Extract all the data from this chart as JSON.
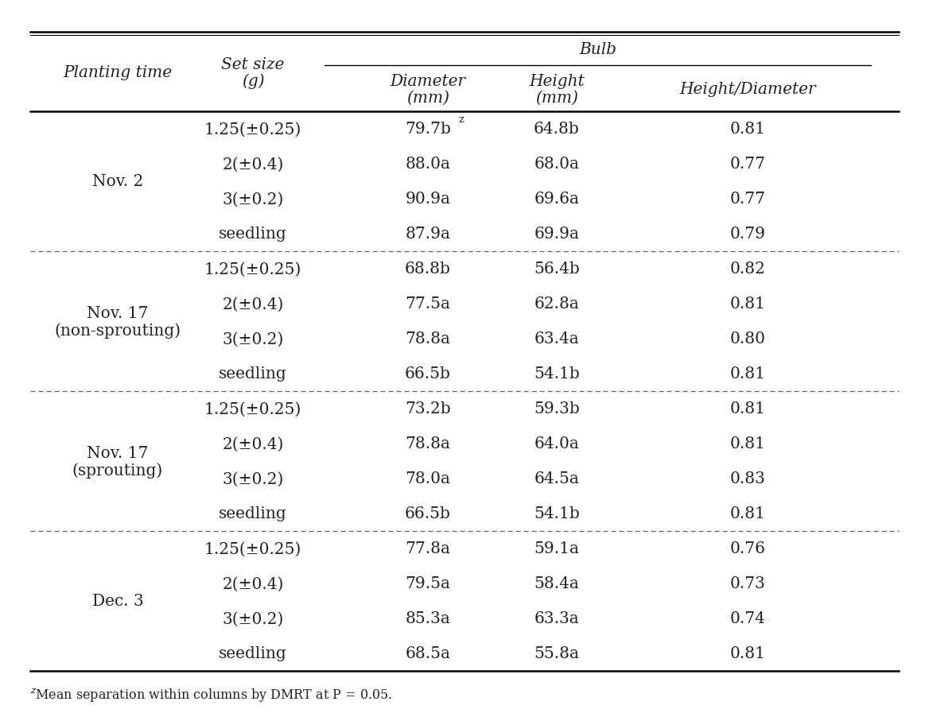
{
  "footnote": "zMean separation within columns by DMRT at P = 0.05.",
  "bulb_header": "Bulb",
  "col0_header": "Planting time",
  "col1_header_line1": "Set size",
  "col1_header_line2": "(g)",
  "col2_header_line1": "Diameter",
  "col2_header_line2": "(mm)",
  "col3_header_line1": "Height",
  "col3_header_line2": "(mm)",
  "col4_header": "Height/Diameter",
  "rows": [
    {
      "set_size": "1.25(±0.25)",
      "diameter": "79.7b",
      "diam_super": "z",
      "height": "64.8b",
      "hd": "0.81"
    },
    {
      "set_size": "2(±0.4)",
      "diameter": "88.0a",
      "diam_super": "",
      "height": "68.0a",
      "hd": "0.77"
    },
    {
      "set_size": "3(±0.2)",
      "diameter": "90.9a",
      "diam_super": "",
      "height": "69.6a",
      "hd": "0.77"
    },
    {
      "set_size": "seedling",
      "diameter": "87.9a",
      "diam_super": "",
      "height": "69.9a",
      "hd": "0.79"
    },
    {
      "set_size": "1.25(±0.25)",
      "diameter": "68.8b",
      "diam_super": "",
      "height": "56.4b",
      "hd": "0.82"
    },
    {
      "set_size": "2(±0.4)",
      "diameter": "77.5a",
      "diam_super": "",
      "height": "62.8a",
      "hd": "0.81"
    },
    {
      "set_size": "3(±0.2)",
      "diameter": "78.8a",
      "diam_super": "",
      "height": "63.4a",
      "hd": "0.80"
    },
    {
      "set_size": "seedling",
      "diameter": "66.5b",
      "diam_super": "",
      "height": "54.1b",
      "hd": "0.81"
    },
    {
      "set_size": "1.25(±0.25)",
      "diameter": "73.2b",
      "diam_super": "",
      "height": "59.3b",
      "hd": "0.81"
    },
    {
      "set_size": "2(±0.4)",
      "diameter": "78.8a",
      "diam_super": "",
      "height": "64.0a",
      "hd": "0.81"
    },
    {
      "set_size": "3(±0.2)",
      "diameter": "78.0a",
      "diam_super": "",
      "height": "64.5a",
      "hd": "0.83"
    },
    {
      "set_size": "seedling",
      "diameter": "66.5b",
      "diam_super": "",
      "height": "54.1b",
      "hd": "0.81"
    },
    {
      "set_size": "1.25(±0.25)",
      "diameter": "77.8a",
      "diam_super": "",
      "height": "59.1a",
      "hd": "0.76"
    },
    {
      "set_size": "2(±0.4)",
      "diameter": "79.5a",
      "diam_super": "",
      "height": "58.4a",
      "hd": "0.73"
    },
    {
      "set_size": "3(±0.2)",
      "diameter": "85.3a",
      "diam_super": "",
      "height": "63.3a",
      "hd": "0.74"
    },
    {
      "set_size": "seedling",
      "diameter": "68.5a",
      "diam_super": "",
      "height": "55.8a",
      "hd": "0.81"
    }
  ],
  "groups": [
    {
      "label_line1": "Nov. 2",
      "label_line2": "",
      "rows": [
        0,
        1,
        2,
        3
      ]
    },
    {
      "label_line1": "Nov. 17",
      "label_line2": "(non-sprouting)",
      "rows": [
        4,
        5,
        6,
        7
      ]
    },
    {
      "label_line1": "Nov. 17",
      "label_line2": "(sprouting)",
      "rows": [
        8,
        9,
        10,
        11
      ]
    },
    {
      "label_line1": "Dec. 3",
      "label_line2": "",
      "rows": [
        12,
        13,
        14,
        15
      ]
    }
  ],
  "bg_color": "#ffffff",
  "text_color": "#222222",
  "line_color": "#000000",
  "dash_color": "#666666",
  "font_size": 14.5,
  "small_font_size": 11.5,
  "super_font_size": 9.5
}
